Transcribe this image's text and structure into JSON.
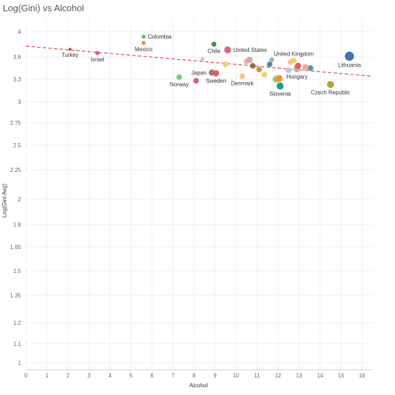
{
  "chart_data": {
    "type": "scatter",
    "title": "Log(Gini) vs Alcohol",
    "xlabel": "Alcohol",
    "ylabel": "Log(Gini Avg)",
    "xlim": [
      0,
      16.5
    ],
    "ylim": [
      1,
      4.1
    ],
    "x_ticks": [
      0,
      1,
      2,
      3,
      4,
      5,
      6,
      7,
      8,
      9,
      10,
      11,
      12,
      13,
      14,
      15,
      16
    ],
    "y_ticks": [
      1,
      1.1,
      1.2,
      1.35,
      1.5,
      1.65,
      1.8,
      2,
      2.25,
      2.5,
      2.75,
      3,
      3.3,
      3.6,
      4
    ],
    "y_tick_labels": [
      "1",
      "1.1",
      "1.2",
      "1.35",
      "1.5",
      "1.65",
      "1.8",
      "2",
      "2.25",
      "2.5",
      "2.75",
      "3",
      "3.3",
      "3.6",
      "4"
    ],
    "grid": true,
    "trend_line": {
      "x": [
        0,
        16.5
      ],
      "y": [
        3.77,
        3.34
      ],
      "color": "#e15759",
      "style": "dashed"
    },
    "points": [
      {
        "x": 2.1,
        "y": 3.72,
        "size": 2,
        "color": "#c0392b",
        "label": "Turkey",
        "label_side": "bottom"
      },
      {
        "x": 3.4,
        "y": 3.66,
        "size": 3,
        "color": "#d4577f",
        "label": "Israel",
        "label_side": "bottom"
      },
      {
        "x": 5.6,
        "y": 3.92,
        "size": 3,
        "color": "#59c46a",
        "label": "Colombia",
        "label_side": "right"
      },
      {
        "x": 5.6,
        "y": 3.82,
        "size": 3,
        "color": "#f28e2b",
        "label": "Mexico",
        "label_side": "bottom"
      },
      {
        "x": 8.95,
        "y": 3.8,
        "size": 3.5,
        "color": "#2e8b3c",
        "label": "Chile",
        "label_side": "bottom"
      },
      {
        "x": 9.6,
        "y": 3.71,
        "size": 5,
        "color": "#e0578d",
        "label": "United States",
        "label_side": "right"
      },
      {
        "x": 7.3,
        "y": 3.33,
        "size": 4,
        "color": "#6ccf6c",
        "label": "Norway",
        "label_side": "bottom"
      },
      {
        "x": 8.1,
        "y": 3.28,
        "size": 4,
        "color": "#d4577f",
        "label": "",
        "label_side": ""
      },
      {
        "x": 8.4,
        "y": 3.57,
        "size": 3,
        "color": "#f4b6c2",
        "label": "",
        "label_side": ""
      },
      {
        "x": 8.85,
        "y": 3.39,
        "size": 4.5,
        "color": "#9c755f",
        "label": "Japan",
        "label_side": "left"
      },
      {
        "x": 9.05,
        "y": 3.38,
        "size": 4.5,
        "color": "#e15759",
        "label": "Sweden",
        "label_side": "bottom"
      },
      {
        "x": 9.5,
        "y": 3.5,
        "size": 4,
        "color": "#f1ce63",
        "label": "",
        "label_side": ""
      },
      {
        "x": 10.3,
        "y": 3.34,
        "size": 4,
        "color": "#ffbe7d",
        "label": "Denmark",
        "label_side": "bottom"
      },
      {
        "x": 10.5,
        "y": 3.54,
        "size": 4,
        "color": "#ff9d9a",
        "label": "",
        "label_side": ""
      },
      {
        "x": 10.65,
        "y": 3.56,
        "size": 4.5,
        "color": "#bab0ac",
        "label": "",
        "label_side": ""
      },
      {
        "x": 10.8,
        "y": 3.48,
        "size": 4,
        "color": "#8c6d31",
        "label": "",
        "label_side": ""
      },
      {
        "x": 11.1,
        "y": 3.43,
        "size": 4,
        "color": "#b6992d",
        "label": "",
        "label_side": ""
      },
      {
        "x": 11.35,
        "y": 3.36,
        "size": 4,
        "color": "#f1ce63",
        "label": "",
        "label_side": ""
      },
      {
        "x": 11.6,
        "y": 3.5,
        "size": 4,
        "color": "#4e79a7",
        "label": "",
        "label_side": ""
      },
      {
        "x": 11.7,
        "y": 3.56,
        "size": 3.5,
        "color": "#86bcb6",
        "label": "",
        "label_side": ""
      },
      {
        "x": 11.9,
        "y": 3.3,
        "size": 5,
        "color": "#8cd17d",
        "label": "",
        "label_side": ""
      },
      {
        "x": 12.05,
        "y": 3.31,
        "size": 5,
        "color": "#f28e2b",
        "label": "",
        "label_side": ""
      },
      {
        "x": 12.1,
        "y": 3.21,
        "size": 5,
        "color": "#17968c",
        "label": "Slovenia",
        "label_side": "bottom"
      },
      {
        "x": 12.5,
        "y": 3.42,
        "size": 4,
        "color": "#a0cbe8",
        "label": "",
        "label_side": ""
      },
      {
        "x": 12.6,
        "y": 3.53,
        "size": 4,
        "color": "#ffbe7d",
        "label": "",
        "label_side": ""
      },
      {
        "x": 12.75,
        "y": 3.55,
        "size": 4,
        "color": "#f1ce63",
        "label": "United Kingdom",
        "label_side": "top"
      },
      {
        "x": 12.9,
        "y": 3.44,
        "size": 5,
        "color": "#bab0ac",
        "label": "Hungary",
        "label_side": "bottom"
      },
      {
        "x": 12.95,
        "y": 3.48,
        "size": 4.5,
        "color": "#e15759",
        "label": "",
        "label_side": ""
      },
      {
        "x": 13.3,
        "y": 3.46,
        "size": 4.5,
        "color": "#ff9d9a",
        "label": "",
        "label_side": ""
      },
      {
        "x": 13.55,
        "y": 3.45,
        "size": 4,
        "color": "#499894",
        "label": "",
        "label_side": ""
      },
      {
        "x": 14.5,
        "y": 3.23,
        "size": 5,
        "color": "#b6992d",
        "label": "Czech Republic",
        "label_side": "bottom"
      },
      {
        "x": 15.4,
        "y": 3.61,
        "size": 6.5,
        "color": "#3a6ea5",
        "label": "Lithuania",
        "label_side": "bottom"
      }
    ]
  }
}
